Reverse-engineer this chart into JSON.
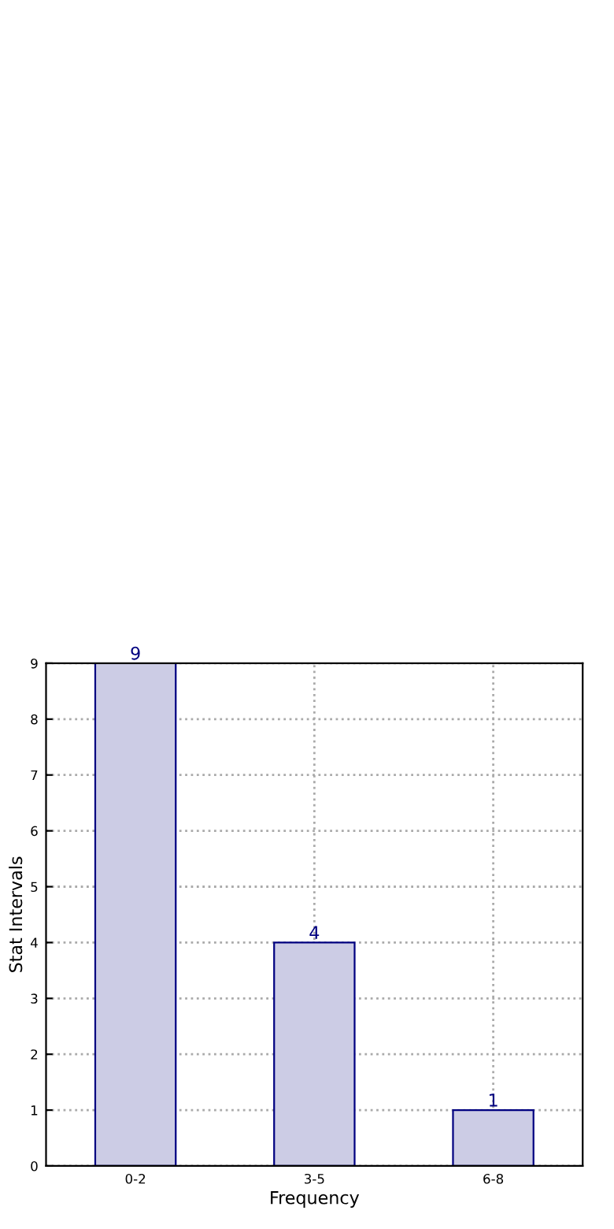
{
  "chart_data": {
    "type": "bar",
    "xlabel": "Frequency",
    "ylabel": "Stat Intervals",
    "categories": [
      "0-2",
      "3-5",
      "6-8"
    ],
    "values": [
      9,
      4,
      1
    ],
    "color": "#ccccE5",
    "ylim": [
      0,
      9
    ],
    "yticks": [
      0,
      1,
      2,
      3,
      4,
      5,
      6,
      7,
      8,
      9
    ],
    "grid": true,
    "data_labels": true
  }
}
